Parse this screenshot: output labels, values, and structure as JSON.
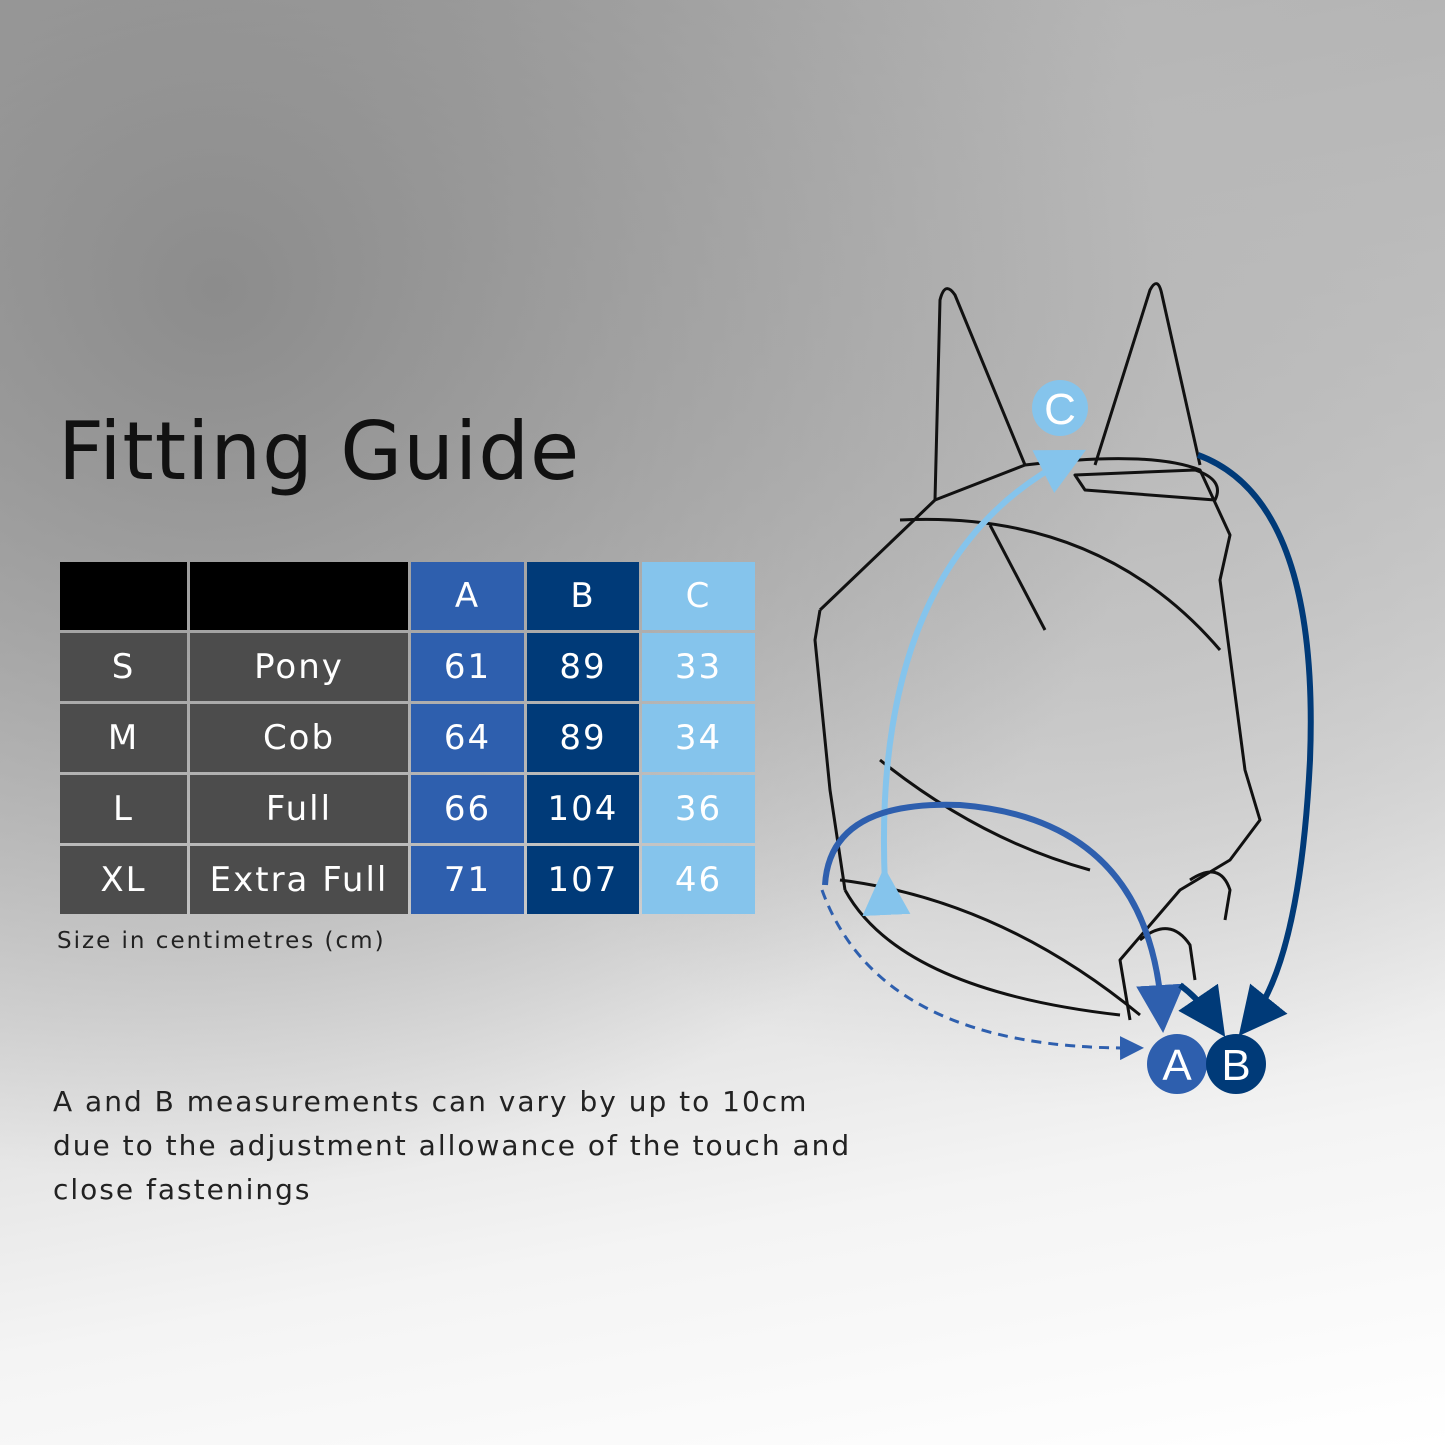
{
  "title": "Fitting Guide",
  "table": {
    "headers": [
      "",
      "",
      "A",
      "B",
      "C"
    ],
    "rows": [
      {
        "size": "S",
        "name": "Pony",
        "a": "61",
        "b": "89",
        "c": "33"
      },
      {
        "size": "M",
        "name": "Cob",
        "a": "64",
        "b": "89",
        "c": "34"
      },
      {
        "size": "L",
        "name": "Full",
        "a": "66",
        "b": "104",
        "c": "36"
      },
      {
        "size": "XL",
        "name": "Extra Full",
        "a": "71",
        "b": "107",
        "c": "46"
      }
    ]
  },
  "unit_note": "Size in centimetres (cm)",
  "disclaimer": "A and B measurements can vary by up to 10cm due to the adjustment allowance of the touch and close fastenings",
  "diagram": {
    "labels": {
      "a": "A",
      "b": "B",
      "c": "C"
    }
  },
  "colors": {
    "a": "#2e5fae",
    "b": "#003a78",
    "c": "#85c4ec",
    "size_cells": "#4c4c4c",
    "header": "#000000"
  }
}
